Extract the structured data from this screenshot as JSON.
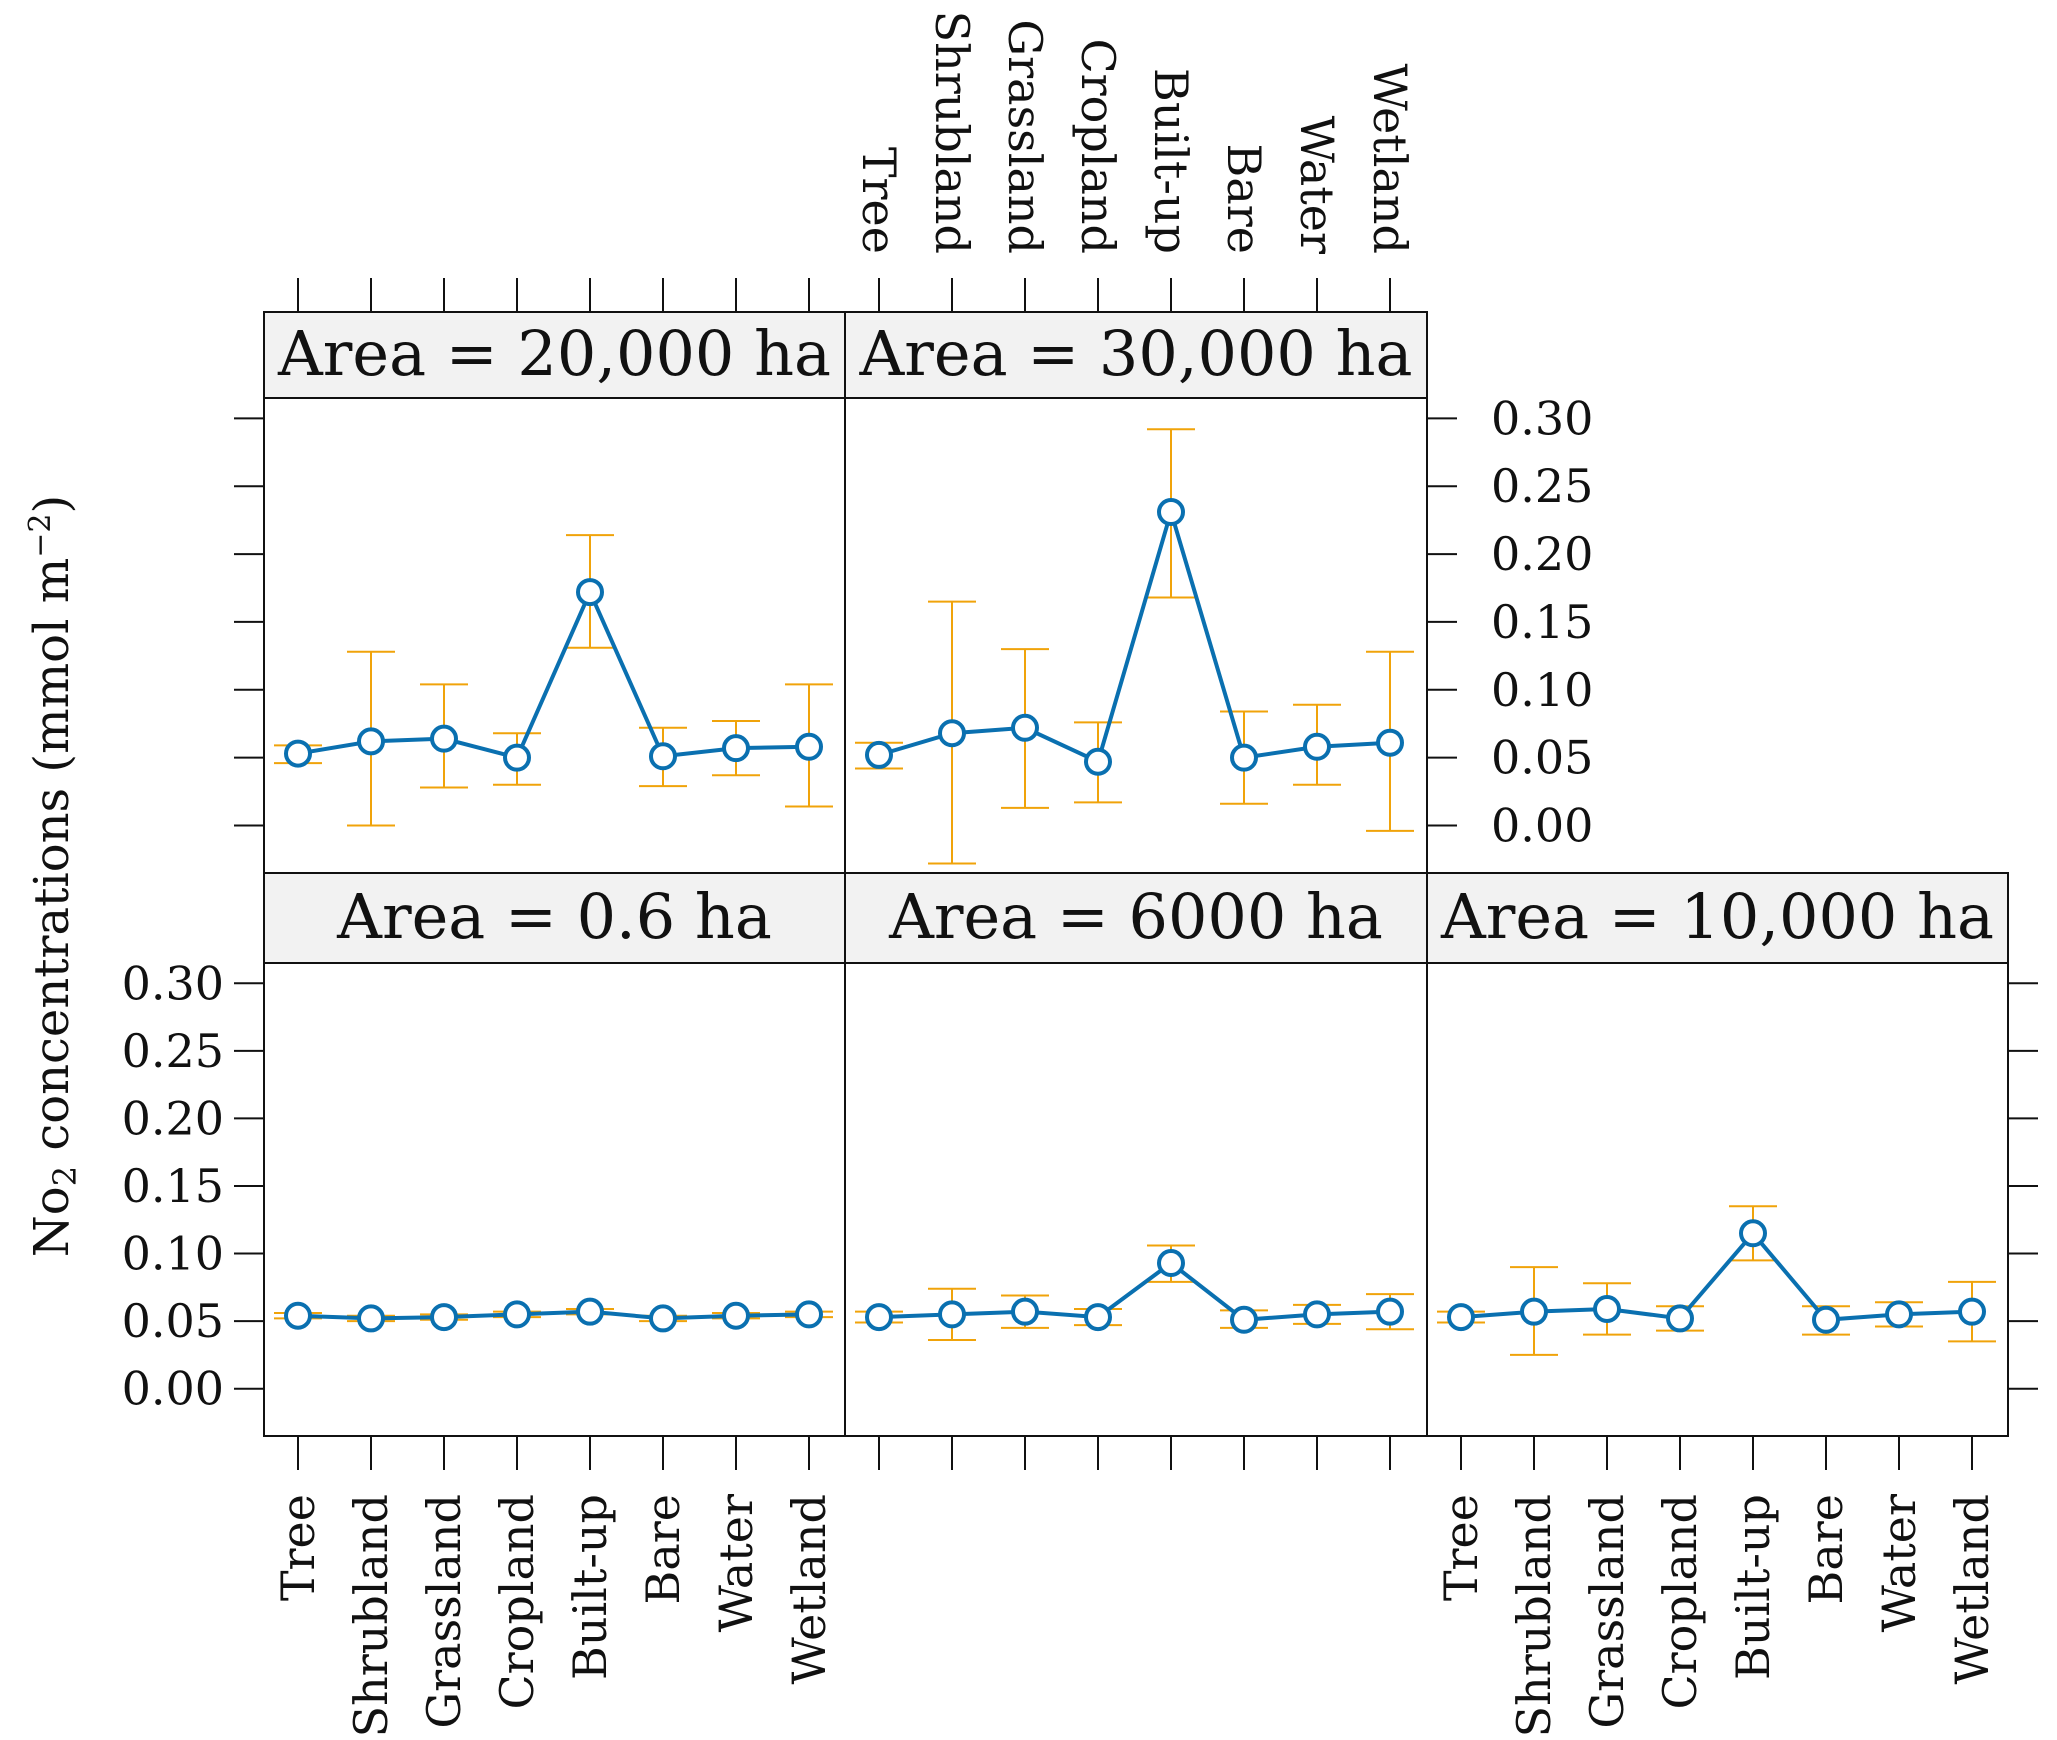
{
  "chart_data": {
    "type": "line",
    "ylabel_main": "No",
    "ylabel_sub": "2",
    "ylabel_rest": " concentrations (mmol m",
    "ylabel_sup": "−2",
    "ylabel_end": ")",
    "categories": [
      "Tree",
      "Shrubland",
      "Grassland",
      "Cropland",
      "Built-up",
      "Bare",
      "Water",
      "Wetland"
    ],
    "yticks": [
      "0.00",
      "0.05",
      "0.10",
      "0.15",
      "0.20",
      "0.25",
      "0.30"
    ],
    "ylim": [
      -0.035,
      0.315
    ],
    "colors": {
      "line": "#0a70b0",
      "errorbar": "#f0a30a",
      "strip": "#f2f2f2"
    },
    "panels": [
      {
        "title": "Area = 20,000 ha",
        "values": [
          0.053,
          0.062,
          0.064,
          0.05,
          0.172,
          0.051,
          0.057,
          0.058
        ],
        "lower": [
          0.046,
          0.0,
          0.028,
          0.03,
          0.131,
          0.029,
          0.037,
          0.014
        ],
        "upper": [
          0.059,
          0.128,
          0.104,
          0.068,
          0.214,
          0.072,
          0.077,
          0.104
        ]
      },
      {
        "title": "Area = 30,000 ha",
        "values": [
          0.052,
          0.068,
          0.072,
          0.047,
          0.231,
          0.05,
          0.058,
          0.061
        ],
        "lower": [
          0.042,
          -0.028,
          0.013,
          0.017,
          0.168,
          0.016,
          0.03,
          -0.004
        ],
        "upper": [
          0.061,
          0.165,
          0.13,
          0.076,
          0.292,
          0.084,
          0.089,
          0.128
        ]
      },
      {
        "title": "Area = 0.6 ha",
        "values": [
          0.054,
          0.052,
          0.053,
          0.055,
          0.057,
          0.052,
          0.054,
          0.055
        ],
        "lower": [
          0.052,
          0.05,
          0.051,
          0.053,
          0.055,
          0.05,
          0.052,
          0.053
        ],
        "upper": [
          0.056,
          0.054,
          0.055,
          0.057,
          0.059,
          0.054,
          0.056,
          0.057
        ]
      },
      {
        "title": "Area = 6000 ha",
        "values": [
          0.053,
          0.055,
          0.057,
          0.053,
          0.093,
          0.051,
          0.055,
          0.057
        ],
        "lower": [
          0.049,
          0.036,
          0.045,
          0.047,
          0.079,
          0.045,
          0.048,
          0.044
        ],
        "upper": [
          0.057,
          0.074,
          0.069,
          0.059,
          0.106,
          0.058,
          0.062,
          0.07
        ]
      },
      {
        "title": "Area = 10,000 ha",
        "values": [
          0.053,
          0.057,
          0.059,
          0.052,
          0.115,
          0.051,
          0.055,
          0.057
        ],
        "lower": [
          0.049,
          0.025,
          0.04,
          0.043,
          0.095,
          0.04,
          0.046,
          0.035
        ],
        "upper": [
          0.057,
          0.09,
          0.078,
          0.061,
          0.135,
          0.061,
          0.064,
          0.079
        ]
      }
    ]
  }
}
